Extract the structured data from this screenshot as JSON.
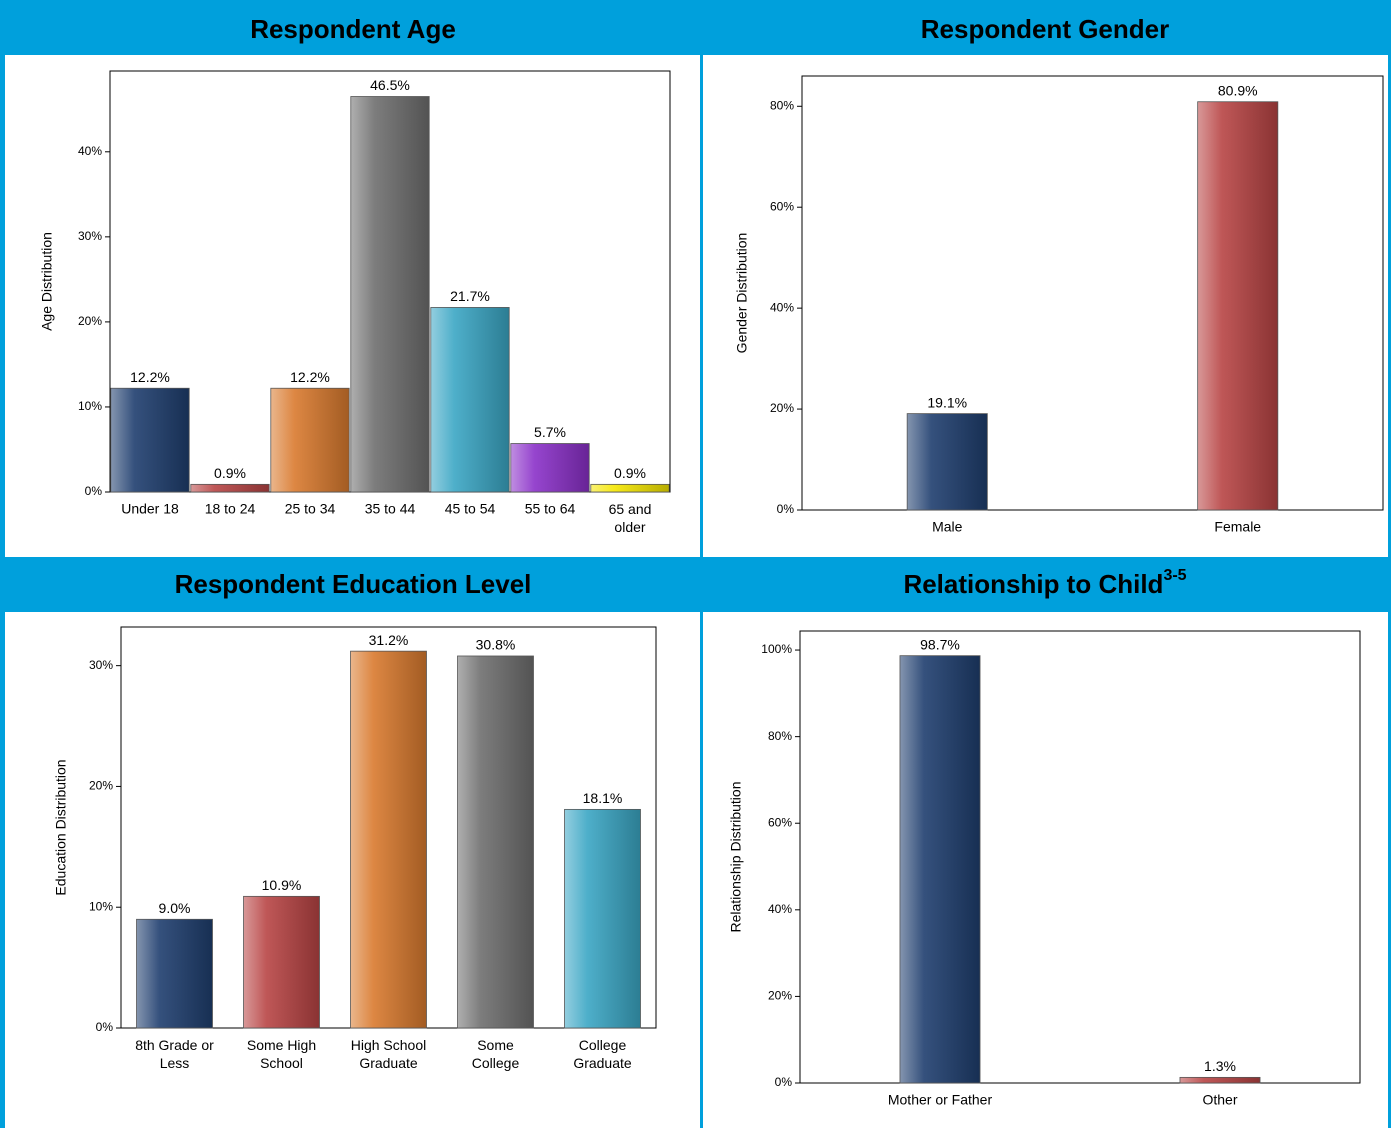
{
  "chart_data": [
    {
      "type": "bar",
      "title": "Respondent Age",
      "y_label": "Age Distribution",
      "categories": [
        "Under 18",
        "18 to 24",
        "25 to 34",
        "35 to 44",
        "45 to 54",
        "55 to 64",
        "65 and older"
      ],
      "values": [
        12.2,
        0.9,
        12.2,
        46.5,
        21.7,
        5.7,
        0.9
      ],
      "value_labels": [
        "12.2%",
        "0.9%",
        "12.2%",
        "46.5%",
        "21.7%",
        "5.7%",
        "0.9%"
      ],
      "colors": [
        "#1f3e6e",
        "#b84444",
        "#d97a2e",
        "#6e6e6e",
        "#3aa6c4",
        "#8a30c8",
        "#f5e600"
      ],
      "ylim": [
        0,
        49.5
      ],
      "yticks": [
        {
          "value": 0,
          "label": "0%"
        },
        {
          "value": 10,
          "label": "10%"
        },
        {
          "value": 20,
          "label": "20%"
        },
        {
          "value": 30,
          "label": "30%"
        },
        {
          "value": 40,
          "label": "40%"
        }
      ]
    },
    {
      "type": "bar",
      "title": "Respondent Gender",
      "y_label": "Gender Distribution",
      "categories": [
        "Male",
        "Female"
      ],
      "values": [
        19.1,
        80.9
      ],
      "value_labels": [
        "19.1%",
        "80.9%"
      ],
      "colors": [
        "#1f3e6e",
        "#b84444"
      ],
      "ylim": [
        0,
        86
      ],
      "yticks": [
        {
          "value": 0,
          "label": "0%"
        },
        {
          "value": 20,
          "label": "20%"
        },
        {
          "value": 40,
          "label": "40%"
        },
        {
          "value": 60,
          "label": "60%"
        },
        {
          "value": 80,
          "label": "80%"
        }
      ]
    },
    {
      "type": "bar",
      "title": "Respondent Education Level",
      "y_label": "Education Distribution",
      "categories": [
        "8th Grade or Less",
        "Some High School",
        "High School Graduate",
        "Some College",
        "College Graduate"
      ],
      "values": [
        9.0,
        10.9,
        31.2,
        30.8,
        18.1
      ],
      "value_labels": [
        "9.0%",
        "10.9%",
        "31.2%",
        "30.8%",
        "18.1%"
      ],
      "colors": [
        "#1f3e6e",
        "#b84444",
        "#d97a2e",
        "#6e6e6e",
        "#3aa6c4"
      ],
      "ylim": [
        0,
        33.2
      ],
      "yticks": [
        {
          "value": 0,
          "label": "0%"
        },
        {
          "value": 10,
          "label": "10%"
        },
        {
          "value": 20,
          "label": "20%"
        },
        {
          "value": 30,
          "label": "30%"
        }
      ]
    },
    {
      "type": "bar",
      "title": "Relationship to Child",
      "title_superscript": "3-5",
      "y_label": "Relationship Distribution",
      "categories": [
        "Mother or Father",
        "Other"
      ],
      "values": [
        98.7,
        1.3
      ],
      "value_labels": [
        "98.7%",
        "1.3%"
      ],
      "colors": [
        "#1f3e6e",
        "#b84444"
      ],
      "ylim": [
        0,
        104.4
      ],
      "yticks": [
        {
          "value": 0,
          "label": "0%"
        },
        {
          "value": 20,
          "label": "20%"
        },
        {
          "value": 40,
          "label": "40%"
        },
        {
          "value": 60,
          "label": "60%"
        },
        {
          "value": 80,
          "label": "80%"
        },
        {
          "value": 100,
          "label": "100%"
        }
      ]
    }
  ]
}
